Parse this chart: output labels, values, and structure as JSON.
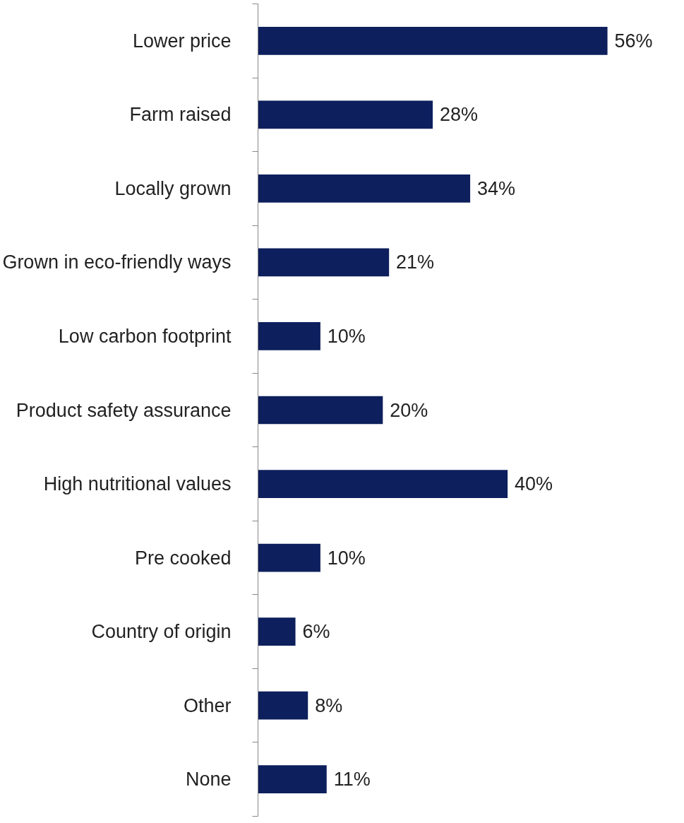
{
  "chart_data": {
    "type": "bar",
    "orientation": "horizontal",
    "categories": [
      "Lower price",
      "Farm raised",
      "Locally grown",
      "Grown in eco-friendly ways",
      "Low carbon footprint",
      "Product safety assurance",
      "High nutritional values",
      "Pre cooked",
      "Country of origin",
      "Other",
      "None"
    ],
    "values": [
      56,
      28,
      34,
      21,
      10,
      20,
      40,
      10,
      6,
      8,
      11
    ],
    "value_labels": [
      "56%",
      "28%",
      "34%",
      "21%",
      "10%",
      "20%",
      "40%",
      "10%",
      "6%",
      "8%",
      "11%"
    ],
    "color": "#0d1f5c",
    "tick_labels": "y"
  }
}
